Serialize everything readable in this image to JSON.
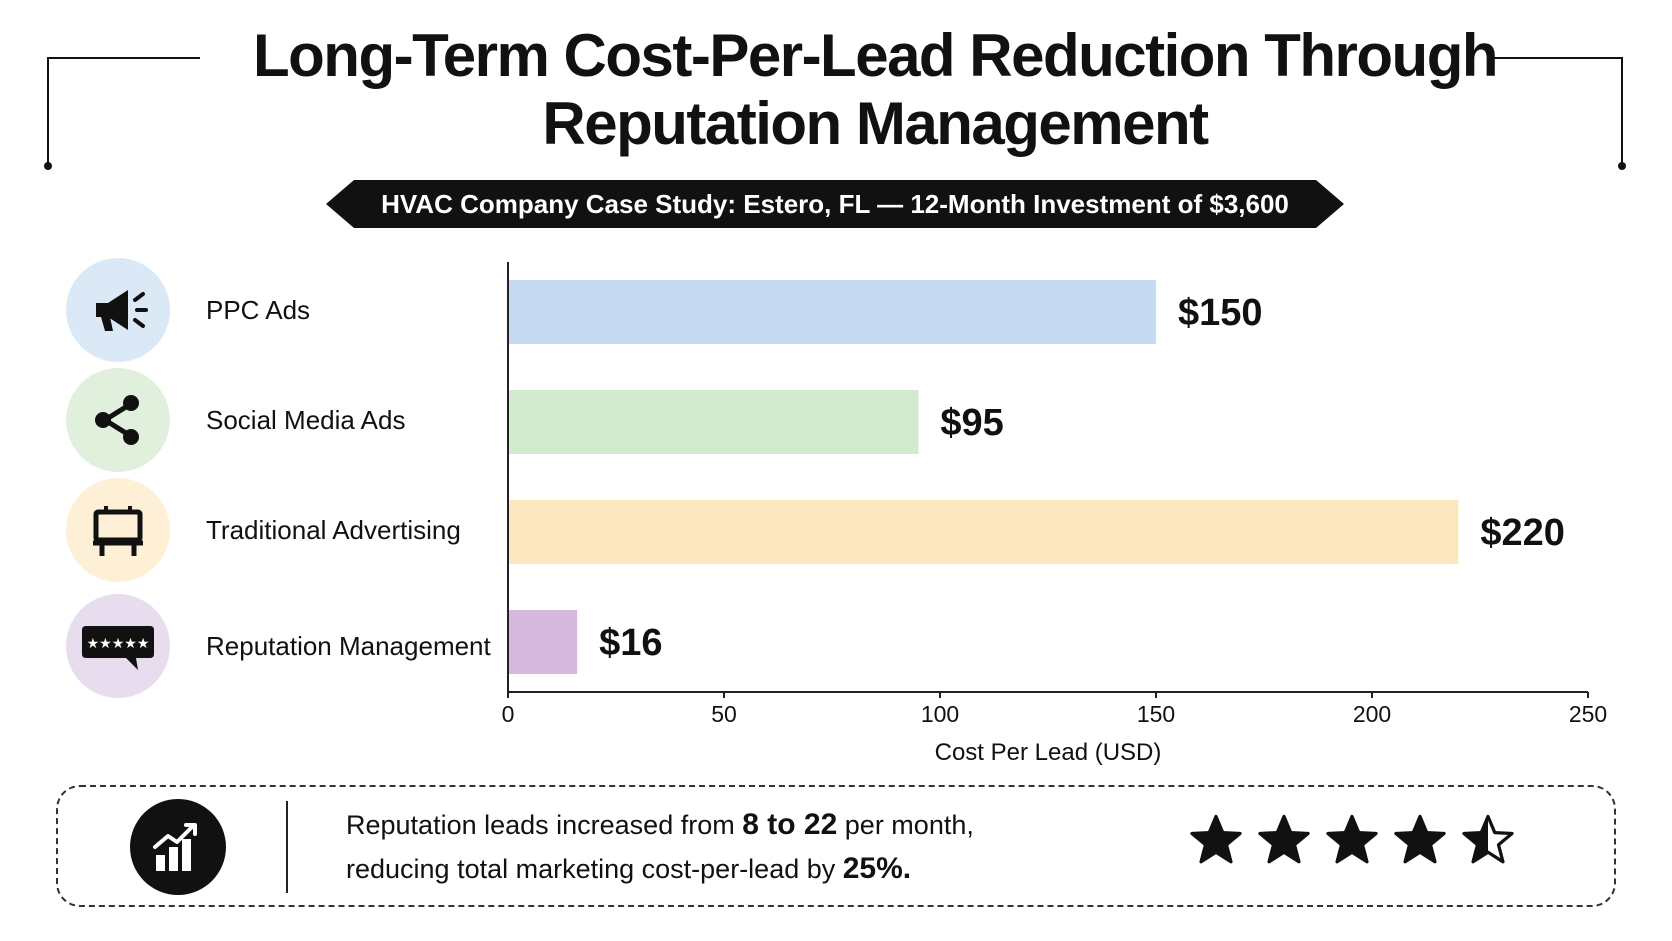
{
  "title_line1": "Long-Term Cost-Per-Lead Reduction Through",
  "title_line2": "Reputation Management",
  "subtitle": "HVAC Company Case Study: Estero, FL — 12-Month Investment of $3,600",
  "icons": [
    "megaphone-icon",
    "share-icon",
    "billboard-icon",
    "review-stars-icon"
  ],
  "icon_backgrounds": [
    "#dbe8f5",
    "#e0f0dd",
    "#fdf0d6",
    "#e8dcef"
  ],
  "chart_data": {
    "type": "bar",
    "orientation": "horizontal",
    "categories": [
      "PPC Ads",
      "Social Media Ads",
      "Traditional Advertising",
      "Reputation Management"
    ],
    "values": [
      150,
      95,
      220,
      16
    ],
    "value_labels": [
      "$150",
      "$95",
      "$220",
      "$16"
    ],
    "colors": [
      "#c5daf2",
      "#d3ead0",
      "#fce8c0",
      "#d6b8de"
    ],
    "xlabel": "Cost Per Lead (USD)",
    "xlim": [
      0,
      250
    ],
    "xticks": [
      0,
      50,
      100,
      150,
      200,
      250
    ],
    "grid": false,
    "legend": "none"
  },
  "insight": {
    "icon": "growth-chart-icon",
    "line1_prefix": "Reputation leads increased from ",
    "line1_bold": "8 to 22",
    "line1_suffix": " per month,",
    "line2_prefix": "reducing total marketing cost-per-lead by ",
    "line2_bold": "25%.",
    "rating": 4.5
  }
}
